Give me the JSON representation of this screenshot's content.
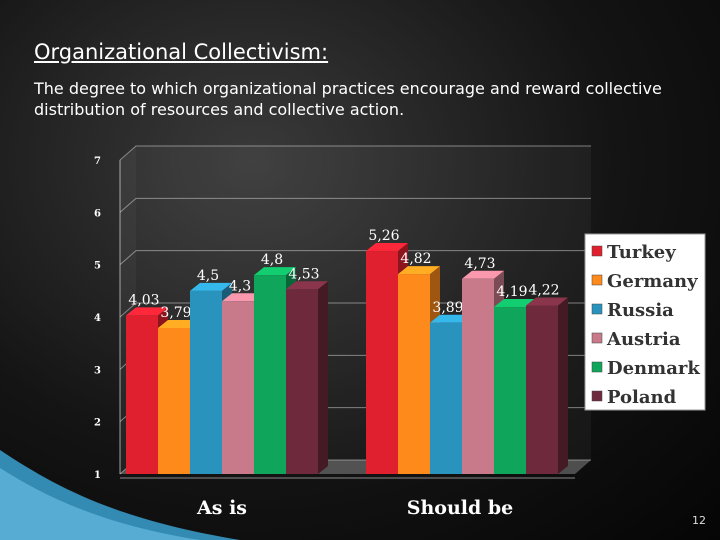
{
  "slide": {
    "title": "Organizational Collectivism:",
    "subtitle": "The degree to which organizational practices encourage and reward collective distribution of resources and collective action.",
    "page_number": "12"
  },
  "chart_data": {
    "type": "bar",
    "style": "3d",
    "categories": [
      "As is",
      "Should be"
    ],
    "series": [
      {
        "name": "Turkey",
        "color": "#e0202e",
        "values": [
          4.03,
          5.26
        ],
        "labels": [
          "4,03",
          "5,26"
        ]
      },
      {
        "name": "Germany",
        "color": "#ff8a1c",
        "values": [
          3.79,
          4.82
        ],
        "labels": [
          "3,79",
          "4,82"
        ]
      },
      {
        "name": "Russia",
        "color": "#2a93bd",
        "values": [
          4.5,
          3.89
        ],
        "labels": [
          "4,5",
          "3,89"
        ]
      },
      {
        "name": "Austria",
        "color": "#c87a8a",
        "values": [
          4.3,
          4.73
        ],
        "labels": [
          "4,3",
          "4,73"
        ]
      },
      {
        "name": "Denmark",
        "color": "#0fa55a",
        "values": [
          4.8,
          4.19
        ],
        "labels": [
          "4,8",
          "4,19"
        ]
      },
      {
        "name": "Poland",
        "color": "#6e2a3c",
        "values": [
          4.53,
          4.22
        ],
        "labels": [
          "4,53",
          "4,22"
        ]
      }
    ],
    "ylim": [
      1,
      7
    ],
    "yticks": [
      "1",
      "2",
      "3",
      "4",
      "5",
      "6",
      "7"
    ],
    "xlabel": "",
    "ylabel": "",
    "grid": true,
    "legend_position": "right"
  }
}
